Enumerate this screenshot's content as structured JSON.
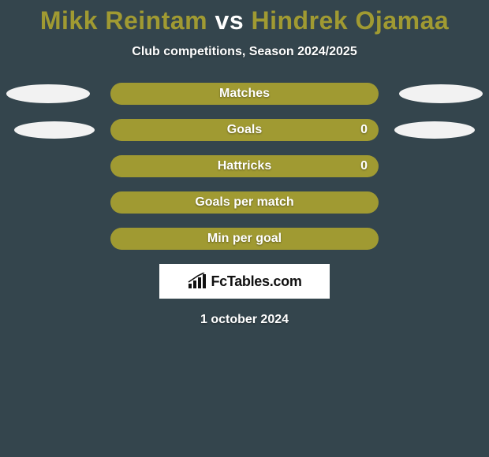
{
  "title": {
    "player1": "Mikk Reintam",
    "vs": "vs",
    "player2": "Hindrek Ojamaa",
    "p1_color": "#a09a32",
    "vs_color": "#ffffff",
    "p2_color": "#a09a32",
    "fontsize": 32
  },
  "subtitle": {
    "text": "Club competitions, Season 2024/2025",
    "fontsize": 16
  },
  "ovals": {
    "left1": {
      "w": 106,
      "h": 24,
      "color": "#f2f2f2"
    },
    "right1": {
      "w": 106,
      "h": 24,
      "color": "#f2f2f2"
    },
    "left2": {
      "w": 102,
      "h": 22,
      "color": "#f2f2f2"
    },
    "right2": {
      "w": 102,
      "h": 22,
      "color": "#f2f2f2"
    }
  },
  "bars": {
    "color": "#a09a32",
    "label_fontsize": 16,
    "items": [
      {
        "label": "Matches",
        "value_right": ""
      },
      {
        "label": "Goals",
        "value_right": "0"
      },
      {
        "label": "Hattricks",
        "value_right": "0"
      },
      {
        "label": "Goals per match",
        "value_right": ""
      },
      {
        "label": "Min per goal",
        "value_right": ""
      }
    ]
  },
  "logo": {
    "text": "FcTables.com",
    "fontsize": 18
  },
  "date": {
    "text": "1 october 2024",
    "fontsize": 16
  }
}
